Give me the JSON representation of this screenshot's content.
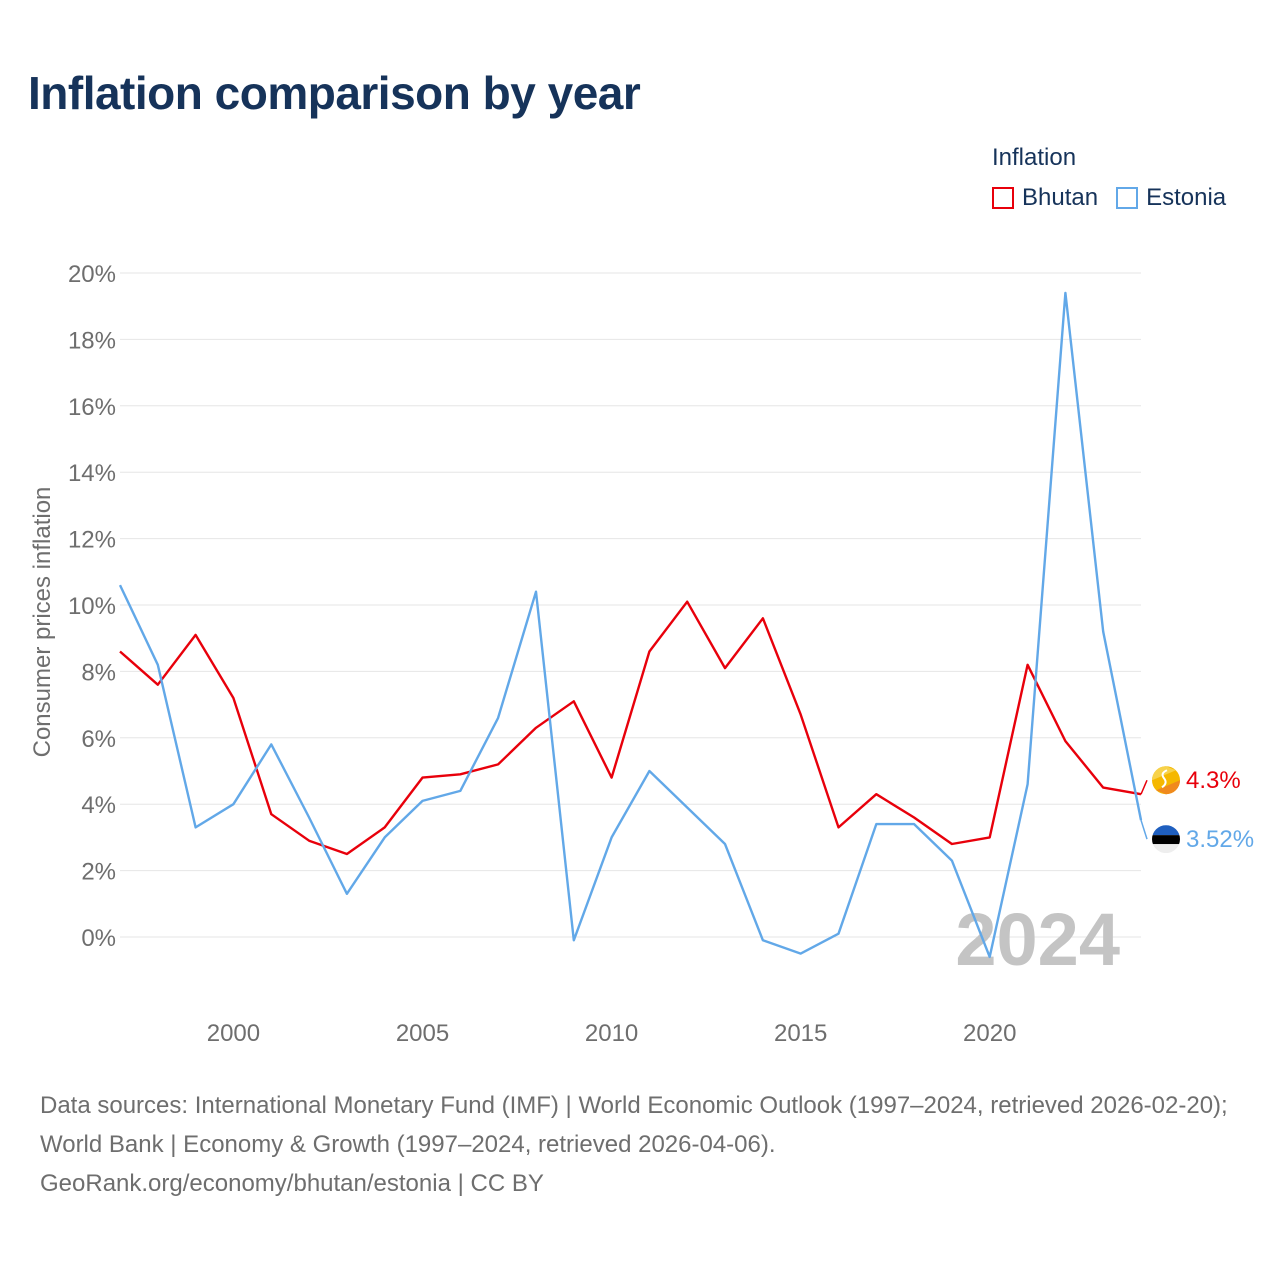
{
  "header": {
    "title": "Inflation comparison by year"
  },
  "legend": {
    "title": "Inflation",
    "items": [
      {
        "label": "Bhutan",
        "color": "#e8000b"
      },
      {
        "label": "Estonia",
        "color": "#62a8e8"
      }
    ]
  },
  "chart_data": {
    "type": "line",
    "title": "Inflation comparison by year",
    "xlabel": "",
    "ylabel": "Consumer prices inflation",
    "xlim": [
      1997,
      2024
    ],
    "ylim": [
      -2,
      20
    ],
    "y_ticks": [
      0,
      2,
      4,
      6,
      8,
      10,
      12,
      14,
      16,
      18,
      20
    ],
    "y_tick_labels": [
      "0%",
      "2%",
      "4%",
      "6%",
      "8%",
      "10%",
      "12%",
      "14%",
      "16%",
      "18%",
      "20%"
    ],
    "x_ticks": [
      2000,
      2005,
      2010,
      2015,
      2020
    ],
    "x_tick_labels": [
      "2000",
      "2005",
      "2010",
      "2015",
      "2020"
    ],
    "grid": true,
    "year_watermark": "2024",
    "x": [
      1997,
      1998,
      1999,
      2000,
      2001,
      2002,
      2003,
      2004,
      2005,
      2006,
      2007,
      2008,
      2009,
      2010,
      2011,
      2012,
      2013,
      2014,
      2015,
      2016,
      2017,
      2018,
      2019,
      2020,
      2021,
      2022,
      2023,
      2024
    ],
    "series": [
      {
        "name": "Bhutan",
        "color": "#e8000b",
        "end_label": "4.3%",
        "values": [
          8.6,
          7.6,
          9.1,
          7.2,
          3.7,
          2.9,
          2.5,
          3.3,
          4.8,
          4.9,
          5.2,
          6.3,
          7.1,
          4.8,
          8.6,
          10.1,
          8.1,
          9.6,
          6.7,
          3.3,
          4.3,
          3.6,
          2.8,
          3.0,
          8.2,
          5.9,
          4.5,
          4.3
        ]
      },
      {
        "name": "Estonia",
        "color": "#62a8e8",
        "end_label": "3.52%",
        "values": [
          10.6,
          8.2,
          3.3,
          4.0,
          5.8,
          3.6,
          1.3,
          3.0,
          4.1,
          4.4,
          6.6,
          10.4,
          -0.1,
          3.0,
          5.0,
          3.9,
          2.8,
          -0.1,
          -0.5,
          0.1,
          3.4,
          3.4,
          2.3,
          -0.6,
          4.6,
          19.4,
          9.2,
          3.52
        ]
      }
    ]
  },
  "footer": {
    "sources": "Data sources: International Monetary Fund (IMF) | World Economic Outlook (1997–2024, retrieved 2026-02-20); World Bank | Economy & Growth (1997–2024, retrieved 2026-04-06).",
    "credit": "GeoRank.org/economy/bhutan/estonia | CC BY"
  }
}
